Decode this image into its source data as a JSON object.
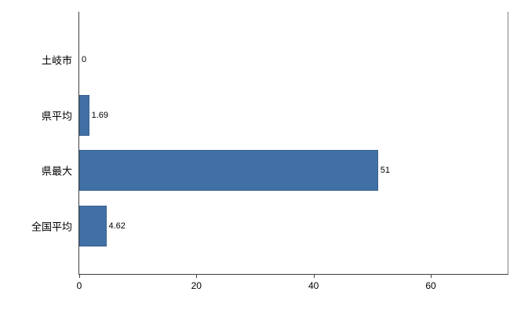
{
  "chart_data": {
    "type": "bar",
    "orientation": "horizontal",
    "title": "",
    "categories": [
      "土岐市",
      "県平均",
      "県最大",
      "全国平均"
    ],
    "values": [
      0,
      1.69,
      51,
      4.62
    ],
    "value_labels": [
      "0",
      "1.69",
      "51",
      "4.62"
    ],
    "xlim": [
      0,
      60
    ],
    "x_ticks": [
      0,
      20,
      40,
      60
    ],
    "x_tick_labels": [
      "0",
      "20",
      "40",
      "60"
    ],
    "grid": false,
    "legend": false,
    "bar_color": "#4170A6",
    "bar_border_color": "#38618F",
    "axis_color": "#404040"
  }
}
